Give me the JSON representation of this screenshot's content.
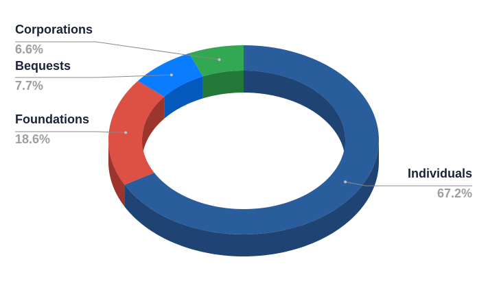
{
  "chart_data": {
    "type": "pie",
    "style": "3d-donut",
    "title": "",
    "unit": "%",
    "slices": [
      {
        "label": "Individuals",
        "value": 67.2,
        "display": "67.2%",
        "color": "#2a5d9b",
        "side_color": "#1f4373"
      },
      {
        "label": "Foundations",
        "value": 18.6,
        "display": "18.6%",
        "color": "#dd5145",
        "side_color": "#9b352d"
      },
      {
        "label": "Bequests",
        "value": 7.7,
        "display": "7.7%",
        "color": "#0a7dff",
        "side_color": "#0559bd"
      },
      {
        "label": "Corporations",
        "value": 6.6,
        "display": "6.6%",
        "color": "#33a852",
        "side_color": "#237739"
      }
    ],
    "legend": "none (labels beside slices)"
  }
}
